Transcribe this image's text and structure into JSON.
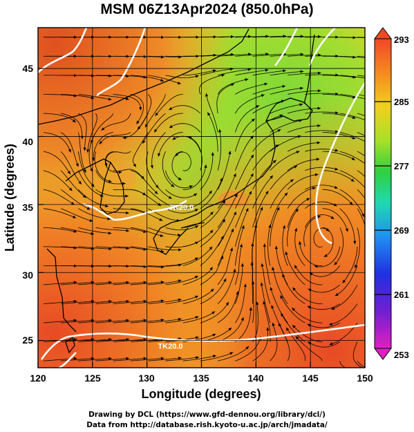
{
  "title": "MSM 06Z13Apr2024 (850.0hPa)",
  "map": {
    "lon_range": [
      120,
      150
    ],
    "lat_range": [
      23,
      48
    ],
    "x_ticks": [
      "120",
      "125",
      "130",
      "135",
      "140",
      "145",
      "150"
    ],
    "x_tick_values": [
      120,
      125,
      130,
      135,
      140,
      145,
      150
    ],
    "y_ticks": [
      "25",
      "30",
      "35",
      "40",
      "45"
    ],
    "y_tick_values": [
      25,
      30,
      35,
      40,
      45
    ],
    "xlabel": "Longitude (degrees)",
    "ylabel": "Latitude  (degrees)",
    "grid": true,
    "contour_labels": [
      {
        "text": "TK20.0",
        "lon": 132.0,
        "lat": 34.6
      },
      {
        "text": "TK20.0",
        "lon": 131.0,
        "lat": 24.4
      }
    ],
    "colors": {
      "ocean_warm": "#e8552a",
      "mid": "#f0b020",
      "cool": "#8ed830",
      "contour": "#ffffff"
    }
  },
  "colorbar": {
    "labels": [
      "293",
      "285",
      "277",
      "269",
      "261",
      "253"
    ],
    "values": [
      293,
      285,
      277,
      269,
      261,
      253
    ],
    "range": [
      253,
      293
    ]
  },
  "credits": {
    "line1": "Drawing by DCL (https://www.gfd-dennou.org/library/dcl/)",
    "line2": "Data from http://database.rish.kyoto-u.ac.jp/arch/jmadata/"
  }
}
